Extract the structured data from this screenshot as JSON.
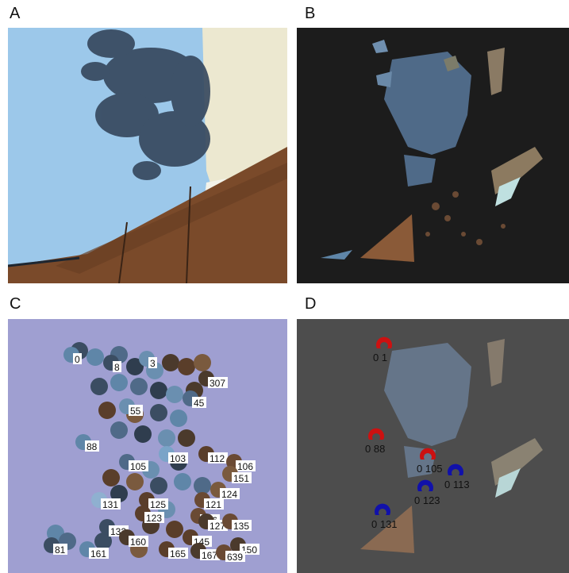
{
  "panels": {
    "a": {
      "label": "A"
    },
    "b": {
      "label": "B"
    },
    "c": {
      "label": "C"
    },
    "d": {
      "label": "D"
    }
  },
  "panel_c_node_labels": [
    "0",
    "8",
    "3",
    "307",
    "88",
    "105",
    "103",
    "112",
    "106",
    "151",
    "125",
    "121",
    "124",
    "123",
    "126",
    "127",
    "131",
    "132",
    "135",
    "145",
    "150",
    "160",
    "161",
    "165",
    "167",
    "639",
    "81",
    "45",
    "55"
  ],
  "panel_d_markers": [
    {
      "id": "0 1",
      "color": "#cc1111"
    },
    {
      "id": "0 88",
      "color": "#cc1111"
    },
    {
      "id": "0 105",
      "color": "#cc1111"
    },
    {
      "id": "0 113",
      "color": "#1111aa"
    },
    {
      "id": "0 123",
      "color": "#1111aa"
    },
    {
      "id": "0 131",
      "color": "#1111aa"
    }
  ],
  "colors": {
    "sky": "#9cc8e8",
    "roof": "#7a4a2a",
    "wall": "#ece8d2",
    "foliage": "#3b4d62",
    "panel_b_bg": "#1c1c1c",
    "panel_c_bg": "#9f9fd1",
    "panel_d_bg": "#4d4d4d"
  }
}
